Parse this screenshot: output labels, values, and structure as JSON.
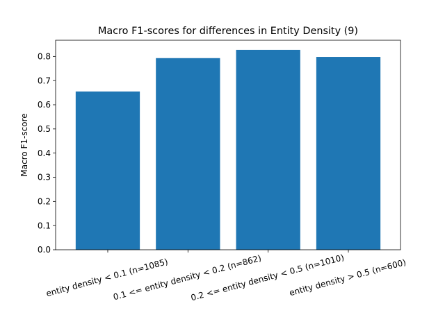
{
  "chart_data": {
    "type": "bar",
    "title": "Macro F1-scores for differences in Entity Density (9)",
    "xlabel": "",
    "ylabel": "Macro F1-score",
    "categories": [
      "entity density < 0.1 (n=1085)",
      "0.1 <= entity density < 0.2 (n=862)",
      "0.2 <= entity density < 0.5 (n=1010)",
      "entity density > 0.5 (n=600)"
    ],
    "values": [
      0.655,
      0.793,
      0.827,
      0.798
    ],
    "ylim": [
      0,
      0.867
    ],
    "yticks": [
      0.0,
      0.1,
      0.2,
      0.3,
      0.4,
      0.5,
      0.6,
      0.7,
      0.8
    ],
    "ytick_labels": [
      "0.0",
      "0.1",
      "0.2",
      "0.3",
      "0.4",
      "0.5",
      "0.6",
      "0.7",
      "0.8"
    ],
    "bar_color": "#1f77b4",
    "grid": false,
    "xtick_rotation_deg": 15
  }
}
